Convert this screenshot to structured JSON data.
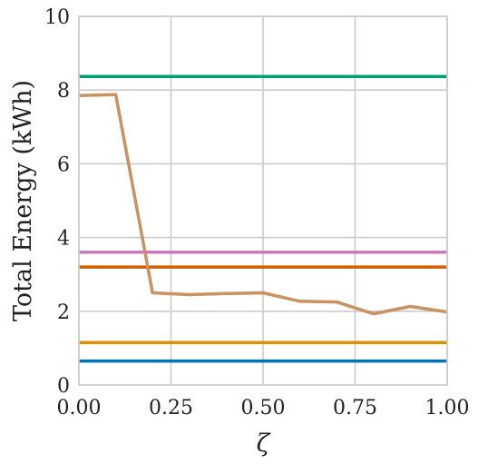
{
  "chart_data": {
    "type": "line",
    "xlabel": "ζ",
    "ylabel": "Total Energy (kWh)",
    "xlim": [
      0.0,
      1.0
    ],
    "ylim": [
      0,
      10
    ],
    "xticks": [
      "0.00",
      "0.25",
      "0.50",
      "0.75",
      "1.00"
    ],
    "yticks": [
      "0",
      "2",
      "4",
      "6",
      "8",
      "10"
    ],
    "grid": true,
    "series": [
      {
        "color": "#029e73",
        "x": [
          0.0,
          1.0
        ],
        "y": [
          8.37,
          8.37
        ]
      },
      {
        "color": "#cc78bc",
        "x": [
          0.0,
          1.0
        ],
        "y": [
          3.6,
          3.6
        ]
      },
      {
        "color": "#d55e00",
        "x": [
          0.0,
          1.0
        ],
        "y": [
          3.2,
          3.2
        ]
      },
      {
        "color": "#de8f05",
        "x": [
          0.0,
          1.0
        ],
        "y": [
          1.15,
          1.15
        ]
      },
      {
        "color": "#0173b2",
        "x": [
          0.0,
          1.0
        ],
        "y": [
          0.65,
          0.65
        ]
      },
      {
        "color": "#ca9161",
        "x": [
          0.0,
          0.1,
          0.2,
          0.3,
          0.4,
          0.5,
          0.6,
          0.7,
          0.8,
          0.9,
          1.0
        ],
        "y": [
          7.85,
          7.88,
          2.5,
          2.45,
          2.48,
          2.5,
          2.27,
          2.25,
          1.93,
          2.13,
          1.98
        ]
      }
    ]
  }
}
